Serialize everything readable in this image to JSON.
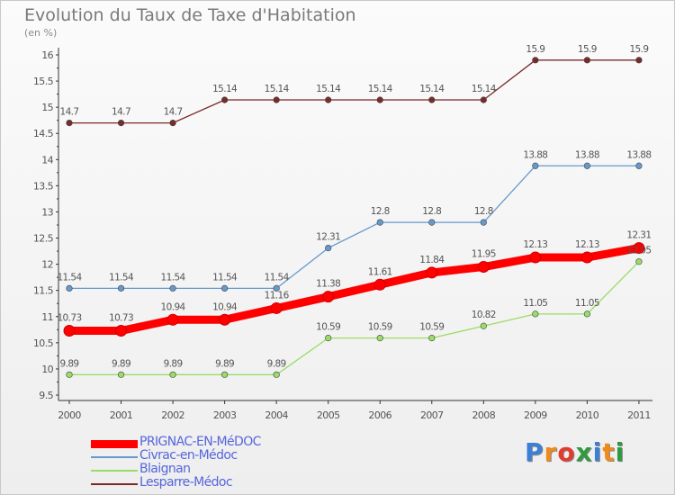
{
  "chart_data": {
    "type": "line",
    "title": "Evolution du Taux de Taxe d'Habitation",
    "subtitle": "(en %)",
    "x": [
      "2000",
      "2001",
      "2002",
      "2003",
      "2004",
      "2005",
      "2006",
      "2007",
      "2008",
      "2009",
      "2010",
      "2011"
    ],
    "ylim": [
      9.5,
      16
    ],
    "yticks": [
      "9.5",
      "10",
      "10.5",
      "11",
      "11.5",
      "12",
      "12.5",
      "13",
      "13.5",
      "14",
      "14.5",
      "15",
      "15.5",
      "16"
    ],
    "grid": false,
    "legend_position": "bottom-left",
    "series": [
      {
        "name": "PRIGNAC-EN-MéDOC",
        "color": "#ff0000",
        "values": [
          10.73,
          10.73,
          10.94,
          10.94,
          11.16,
          11.38,
          11.61,
          11.84,
          11.95,
          12.13,
          12.13,
          12.31
        ],
        "labels": [
          "10.73",
          "10.73",
          "10.94",
          "10.94",
          "11.16",
          "11.38",
          "11.61",
          "11.84",
          "11.95",
          "12.13",
          "12.13",
          "12.31"
        ]
      },
      {
        "name": "Civrac-en-Médoc",
        "color": "#6699cc",
        "values": [
          11.54,
          11.54,
          11.54,
          11.54,
          11.54,
          12.31,
          12.8,
          12.8,
          12.8,
          13.88,
          13.88,
          13.88
        ],
        "labels": [
          "11.54",
          "11.54",
          "11.54",
          "11.54",
          "11.54",
          "12.31",
          "12.8",
          "12.8",
          "12.8",
          "13.88",
          "13.88",
          "13.88"
        ]
      },
      {
        "name": "Blaignan",
        "color": "#99dd66",
        "values": [
          9.89,
          9.89,
          9.89,
          9.89,
          9.89,
          10.59,
          10.59,
          10.59,
          10.82,
          11.05,
          11.05,
          12.05
        ],
        "labels": [
          "9.89",
          "9.89",
          "9.89",
          "9.89",
          "9.89",
          "10.59",
          "10.59",
          "10.59",
          "10.82",
          "11.05",
          "11.05",
          "12.05"
        ]
      },
      {
        "name": "Lesparre-Médoc",
        "color": "#7a2a2a",
        "values": [
          14.7,
          14.7,
          14.7,
          15.14,
          15.14,
          15.14,
          15.14,
          15.14,
          15.14,
          15.9,
          15.9,
          15.9
        ],
        "labels": [
          "14.7",
          "14.7",
          "14.7",
          "15.14",
          "15.14",
          "15.14",
          "15.14",
          "15.14",
          "15.14",
          "15.9",
          "15.9",
          "15.9"
        ]
      }
    ]
  },
  "logo": {
    "letters": [
      "P",
      "r",
      "o",
      "x",
      "i",
      "t",
      "i"
    ],
    "colors": [
      "#3b7fd6",
      "#f08a1c",
      "#e23b2e",
      "#2f9b3e",
      "#3b7fd6",
      "#f08a1c",
      "#2f9b3e"
    ]
  }
}
